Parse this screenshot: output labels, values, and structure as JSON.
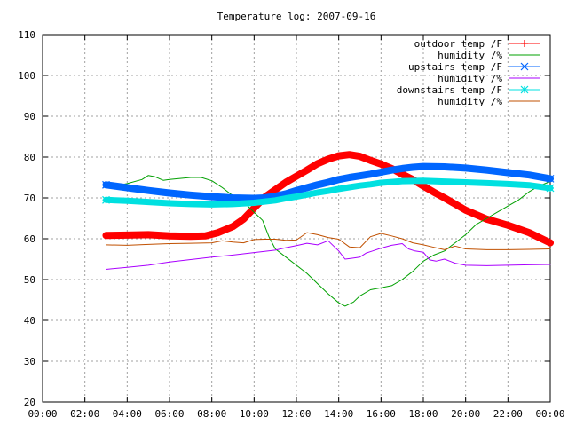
{
  "chart_data": {
    "type": "line",
    "title": "Temperature log: 2007-09-16",
    "xlabel": "",
    "ylabel": "",
    "xlim": [
      "00:00",
      "24:00"
    ],
    "ylim": [
      20,
      110
    ],
    "grid": true,
    "legend_position": "top-right",
    "x_tick_labels": [
      "00:00",
      "02:00",
      "04:00",
      "06:00",
      "08:00",
      "10:00",
      "12:00",
      "14:00",
      "16:00",
      "18:00",
      "20:00",
      "22:00",
      "00:00"
    ],
    "y_tick_labels": [
      "20",
      "30",
      "40",
      "50",
      "60",
      "70",
      "80",
      "90",
      "100",
      "110"
    ],
    "y_ticks": [
      20,
      30,
      40,
      50,
      60,
      70,
      80,
      90,
      100,
      110
    ],
    "series": [
      {
        "name": "outdoor temp /F",
        "color": "#ff0000",
        "marker": "plus",
        "points": [
          [
            3.0,
            60.8
          ],
          [
            4.0,
            60.9
          ],
          [
            5.0,
            61.0
          ],
          [
            6.0,
            60.7
          ],
          [
            7.0,
            60.6
          ],
          [
            7.7,
            60.7
          ],
          [
            8.3,
            61.5
          ],
          [
            9.0,
            63.0
          ],
          [
            9.5,
            64.8
          ],
          [
            10.0,
            67.5
          ],
          [
            10.5,
            70.2
          ],
          [
            11.0,
            72.0
          ],
          [
            11.5,
            73.8
          ],
          [
            12.0,
            75.3
          ],
          [
            12.5,
            76.8
          ],
          [
            13.0,
            78.4
          ],
          [
            13.5,
            79.5
          ],
          [
            14.0,
            80.3
          ],
          [
            14.5,
            80.6
          ],
          [
            15.0,
            80.2
          ],
          [
            15.5,
            79.2
          ],
          [
            16.0,
            78.3
          ],
          [
            16.5,
            77.2
          ],
          [
            17.0,
            75.8
          ],
          [
            17.5,
            74.5
          ],
          [
            18.0,
            72.9
          ],
          [
            18.5,
            71.4
          ],
          [
            19.0,
            70.0
          ],
          [
            20.0,
            67.0
          ],
          [
            21.0,
            64.8
          ],
          [
            22.0,
            63.3
          ],
          [
            23.0,
            61.5
          ],
          [
            24.0,
            59.0
          ]
        ]
      },
      {
        "name": "humidity /%",
        "color": "#00a000",
        "marker": "none",
        "points": [
          [
            3.0,
            72.5
          ],
          [
            4.0,
            73.5
          ],
          [
            4.7,
            74.5
          ],
          [
            5.0,
            75.5
          ],
          [
            5.3,
            75.2
          ],
          [
            5.7,
            74.3
          ],
          [
            6.0,
            74.5
          ],
          [
            7.0,
            75.0
          ],
          [
            7.5,
            75.0
          ],
          [
            8.0,
            74.2
          ],
          [
            8.5,
            72.5
          ],
          [
            9.0,
            70.5
          ],
          [
            9.5,
            69.0
          ],
          [
            10.0,
            66.5
          ],
          [
            10.4,
            64.5
          ],
          [
            10.7,
            60.5
          ],
          [
            11.0,
            57.5
          ],
          [
            11.5,
            55.5
          ],
          [
            12.0,
            53.5
          ],
          [
            12.5,
            51.5
          ],
          [
            13.0,
            49.0
          ],
          [
            13.5,
            46.5
          ],
          [
            14.0,
            44.3
          ],
          [
            14.3,
            43.5
          ],
          [
            14.7,
            44.5
          ],
          [
            15.0,
            46.0
          ],
          [
            15.5,
            47.5
          ],
          [
            16.0,
            48.0
          ],
          [
            16.5,
            48.5
          ],
          [
            17.0,
            50.0
          ],
          [
            17.5,
            52.0
          ],
          [
            18.0,
            54.5
          ],
          [
            18.5,
            56.0
          ],
          [
            19.0,
            57.0
          ],
          [
            19.5,
            59.0
          ],
          [
            20.0,
            61.0
          ],
          [
            20.5,
            63.5
          ],
          [
            21.0,
            65.0
          ],
          [
            21.5,
            66.5
          ],
          [
            22.0,
            68.0
          ],
          [
            22.5,
            69.5
          ],
          [
            23.0,
            71.5
          ],
          [
            23.5,
            73.0
          ],
          [
            24.0,
            74.0
          ]
        ]
      },
      {
        "name": "upstairs temp /F",
        "color": "#0066ff",
        "marker": "cross",
        "points": [
          [
            3.0,
            73.2
          ],
          [
            4.0,
            72.5
          ],
          [
            5.0,
            71.8
          ],
          [
            6.0,
            71.2
          ],
          [
            7.0,
            70.7
          ],
          [
            8.0,
            70.3
          ],
          [
            9.0,
            70.0
          ],
          [
            10.0,
            69.9
          ],
          [
            10.5,
            70.0
          ],
          [
            11.0,
            70.4
          ],
          [
            11.5,
            71.0
          ],
          [
            12.0,
            71.8
          ],
          [
            12.5,
            72.5
          ],
          [
            13.0,
            73.2
          ],
          [
            13.5,
            73.8
          ],
          [
            14.0,
            74.5
          ],
          [
            14.5,
            75.0
          ],
          [
            15.0,
            75.4
          ],
          [
            15.5,
            75.8
          ],
          [
            16.0,
            76.3
          ],
          [
            16.5,
            76.8
          ],
          [
            17.0,
            77.2
          ],
          [
            17.5,
            77.5
          ],
          [
            18.0,
            77.7
          ],
          [
            19.0,
            77.6
          ],
          [
            20.0,
            77.3
          ],
          [
            21.0,
            76.8
          ],
          [
            22.0,
            76.2
          ],
          [
            23.0,
            75.6
          ],
          [
            24.0,
            74.7
          ]
        ]
      },
      {
        "name": "humidity /%",
        "color": "#aa00ff",
        "marker": "none",
        "points": [
          [
            3.0,
            52.5
          ],
          [
            4.0,
            53.0
          ],
          [
            5.0,
            53.5
          ],
          [
            6.0,
            54.3
          ],
          [
            7.0,
            54.9
          ],
          [
            8.0,
            55.5
          ],
          [
            9.0,
            56.0
          ],
          [
            10.0,
            56.6
          ],
          [
            11.0,
            57.2
          ],
          [
            11.5,
            57.8
          ],
          [
            12.0,
            58.3
          ],
          [
            12.5,
            58.9
          ],
          [
            13.0,
            58.5
          ],
          [
            13.5,
            59.5
          ],
          [
            13.8,
            58.0
          ],
          [
            14.0,
            57.0
          ],
          [
            14.3,
            55.0
          ],
          [
            14.6,
            55.2
          ],
          [
            15.0,
            55.5
          ],
          [
            15.3,
            56.5
          ],
          [
            15.6,
            57.0
          ],
          [
            16.0,
            57.7
          ],
          [
            16.5,
            58.4
          ],
          [
            17.0,
            58.8
          ],
          [
            17.3,
            57.5
          ],
          [
            17.6,
            57.0
          ],
          [
            18.0,
            56.7
          ],
          [
            18.3,
            54.8
          ],
          [
            18.6,
            54.5
          ],
          [
            19.0,
            55.0
          ],
          [
            19.5,
            54.0
          ],
          [
            20.0,
            53.5
          ],
          [
            21.0,
            53.4
          ],
          [
            22.0,
            53.5
          ],
          [
            23.0,
            53.6
          ],
          [
            24.0,
            53.7
          ]
        ]
      },
      {
        "name": "downstairs temp /F",
        "color": "#00e0e0",
        "marker": "star",
        "points": [
          [
            3.0,
            69.5
          ],
          [
            4.0,
            69.3
          ],
          [
            5.0,
            69.0
          ],
          [
            6.0,
            68.7
          ],
          [
            7.0,
            68.5
          ],
          [
            8.0,
            68.4
          ],
          [
            9.0,
            68.5
          ],
          [
            10.0,
            68.8
          ],
          [
            11.0,
            69.4
          ],
          [
            11.5,
            69.9
          ],
          [
            12.0,
            70.3
          ],
          [
            12.5,
            70.8
          ],
          [
            13.0,
            71.3
          ],
          [
            13.5,
            71.7
          ],
          [
            14.0,
            72.2
          ],
          [
            14.5,
            72.6
          ],
          [
            15.0,
            73.0
          ],
          [
            15.5,
            73.3
          ],
          [
            16.0,
            73.7
          ],
          [
            16.5,
            73.9
          ],
          [
            17.0,
            74.1
          ],
          [
            18.0,
            74.2
          ],
          [
            19.0,
            74.0
          ],
          [
            20.0,
            73.8
          ],
          [
            21.0,
            73.6
          ],
          [
            22.0,
            73.4
          ],
          [
            23.0,
            73.1
          ],
          [
            24.0,
            72.4
          ]
        ]
      },
      {
        "name": "humidity /%",
        "color": "#c05000",
        "marker": "none",
        "points": [
          [
            3.0,
            58.5
          ],
          [
            4.0,
            58.4
          ],
          [
            5.0,
            58.6
          ],
          [
            6.0,
            58.8
          ],
          [
            7.0,
            58.9
          ],
          [
            8.0,
            59.0
          ],
          [
            8.5,
            59.5
          ],
          [
            9.0,
            59.2
          ],
          [
            9.5,
            59.0
          ],
          [
            10.0,
            59.8
          ],
          [
            10.5,
            59.9
          ],
          [
            11.0,
            59.9
          ],
          [
            11.5,
            59.6
          ],
          [
            12.0,
            59.7
          ],
          [
            12.5,
            61.5
          ],
          [
            13.0,
            61.0
          ],
          [
            13.5,
            60.3
          ],
          [
            14.0,
            59.9
          ],
          [
            14.5,
            58.0
          ],
          [
            15.0,
            57.8
          ],
          [
            15.5,
            60.5
          ],
          [
            16.0,
            61.3
          ],
          [
            16.5,
            60.7
          ],
          [
            17.0,
            60.0
          ],
          [
            17.5,
            59.0
          ],
          [
            18.0,
            58.5
          ],
          [
            18.5,
            57.9
          ],
          [
            19.0,
            57.3
          ],
          [
            19.5,
            58.2
          ],
          [
            20.0,
            57.5
          ],
          [
            21.0,
            57.3
          ],
          [
            22.0,
            57.3
          ],
          [
            23.0,
            57.4
          ],
          [
            24.0,
            57.5
          ]
        ]
      }
    ]
  }
}
